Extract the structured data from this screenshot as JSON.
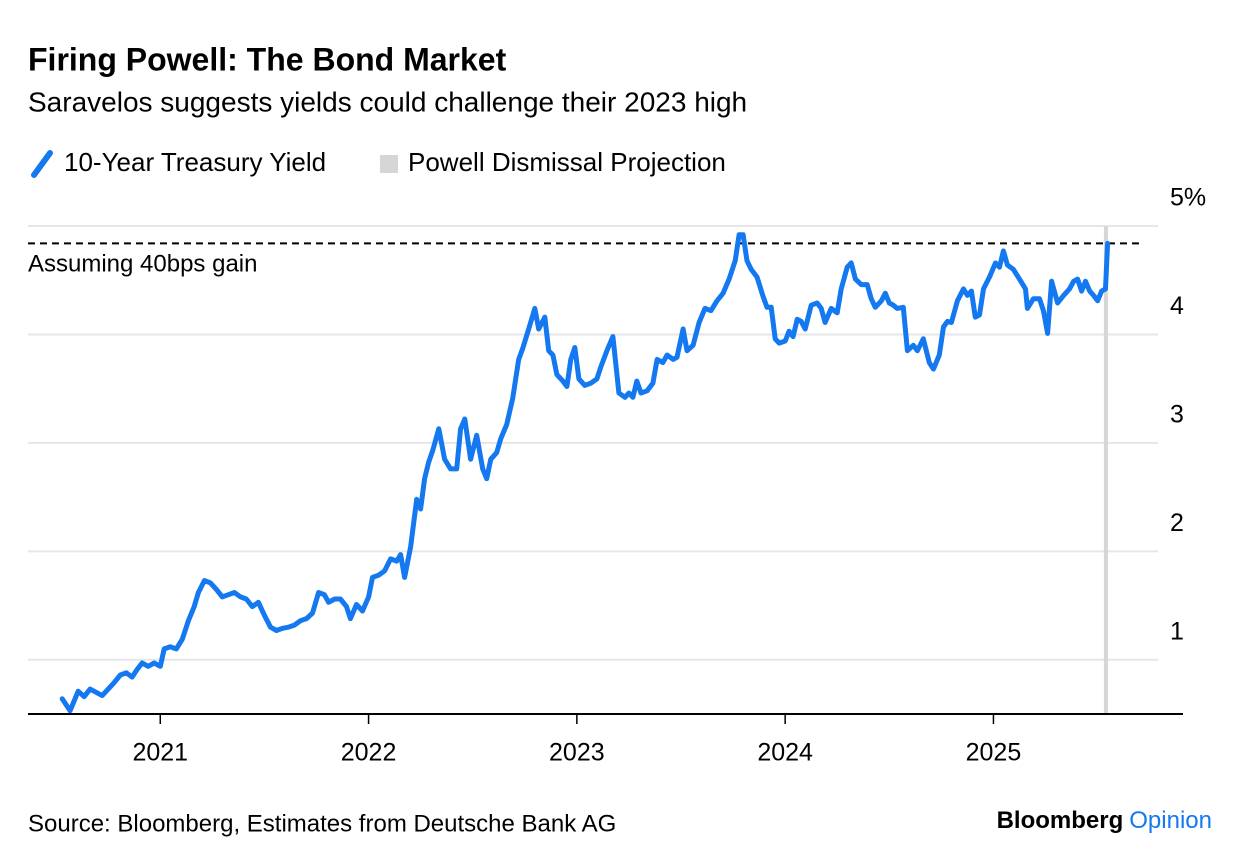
{
  "chart_data": {
    "type": "line",
    "title": "Firing Powell: The Bond Market",
    "subtitle": "Saravelos suggests yields could challenge their 2023 high",
    "source": "Source: Bloomberg, Estimates from Deutsche Bank AG",
    "brand": [
      "Bloomberg",
      "Opinion"
    ],
    "xlim": [
      2020.365,
      2025.91
    ],
    "xticks": [
      2021,
      2022,
      2023,
      2024,
      2025
    ],
    "ylim": [
      0.5,
      5
    ],
    "yticks": [
      1,
      2,
      3,
      4,
      {
        "value": 5,
        "label": "5%"
      }
    ],
    "grid": true,
    "reference_line": {
      "value": 4.84,
      "label": "Assuming 40bps gain"
    },
    "projection": {
      "name": "Powell Dismissal Projection",
      "x": 2025.54,
      "color": "#d6d6d6"
    },
    "x": [
      2020.529,
      2020.567,
      2020.606,
      2020.635,
      2020.663,
      2020.692,
      2020.721,
      2020.75,
      2020.779,
      2020.808,
      2020.837,
      2020.865,
      2020.885,
      2020.913,
      2020.942,
      2020.971,
      2021.0,
      2021.019,
      2021.048,
      2021.077,
      2021.106,
      2021.135,
      2021.163,
      2021.183,
      2021.212,
      2021.24,
      2021.269,
      2021.298,
      2021.327,
      2021.356,
      2021.385,
      2021.413,
      2021.442,
      2021.471,
      2021.5,
      2021.529,
      2021.558,
      2021.587,
      2021.615,
      2021.644,
      2021.673,
      2021.702,
      2021.731,
      2021.76,
      2021.788,
      2021.808,
      2021.837,
      2021.865,
      2021.894,
      2021.913,
      2021.942,
      2021.971,
      2022.0,
      2022.019,
      2022.048,
      2022.077,
      2022.106,
      2022.135,
      2022.154,
      2022.173,
      2022.202,
      2022.231,
      2022.25,
      2022.269,
      2022.288,
      2022.308,
      2022.337,
      2022.365,
      2022.394,
      2022.423,
      2022.442,
      2022.462,
      2022.49,
      2022.519,
      2022.548,
      2022.567,
      2022.587,
      2022.615,
      2022.635,
      2022.663,
      2022.692,
      2022.721,
      2022.74,
      2022.769,
      2022.798,
      2022.817,
      2022.846,
      2022.865,
      2022.885,
      2022.904,
      2022.933,
      2022.952,
      2022.971,
      2022.99,
      2023.01,
      2023.038,
      2023.067,
      2023.096,
      2023.115,
      2023.144,
      2023.173,
      2023.202,
      2023.231,
      2023.25,
      2023.269,
      2023.288,
      2023.308,
      2023.337,
      2023.365,
      2023.385,
      2023.413,
      2023.433,
      2023.462,
      2023.481,
      2023.51,
      2023.529,
      2023.558,
      2023.587,
      2023.615,
      2023.644,
      2023.673,
      2023.702,
      2023.731,
      2023.76,
      2023.779,
      2023.798,
      2023.817,
      2023.837,
      2023.865,
      2023.894,
      2023.913,
      2023.933,
      2023.952,
      2023.971,
      2024.0,
      2024.019,
      2024.038,
      2024.058,
      2024.077,
      2024.096,
      2024.125,
      2024.154,
      2024.173,
      2024.192,
      2024.221,
      2024.25,
      2024.269,
      2024.298,
      2024.317,
      2024.337,
      2024.365,
      2024.394,
      2024.413,
      2024.433,
      2024.462,
      2024.481,
      2024.5,
      2024.519,
      2024.538,
      2024.567,
      2024.587,
      2024.615,
      2024.635,
      2024.663,
      2024.692,
      2024.712,
      2024.74,
      2024.76,
      2024.779,
      2024.798,
      2024.827,
      2024.856,
      2024.875,
      2024.894,
      2024.913,
      2024.933,
      2024.952,
      2024.981,
      2025.01,
      2025.029,
      2025.048,
      2025.067,
      2025.096,
      2025.125,
      2025.154,
      2025.163,
      2025.192,
      2025.221,
      2025.24,
      2025.26,
      2025.279,
      2025.308,
      2025.337,
      2025.365,
      2025.385,
      2025.404,
      2025.423,
      2025.442,
      2025.462,
      2025.481,
      2025.5,
      2025.519,
      2025.538,
      2025.548
    ],
    "series": [
      {
        "name": "10-Year Treasury Yield",
        "color": "#1478f0",
        "values": [
          0.64,
          0.53,
          0.71,
          0.66,
          0.73,
          0.7,
          0.67,
          0.73,
          0.79,
          0.86,
          0.88,
          0.84,
          0.9,
          0.97,
          0.94,
          0.97,
          0.94,
          1.1,
          1.12,
          1.1,
          1.19,
          1.36,
          1.49,
          1.62,
          1.73,
          1.71,
          1.65,
          1.58,
          1.6,
          1.62,
          1.58,
          1.56,
          1.49,
          1.53,
          1.41,
          1.3,
          1.27,
          1.29,
          1.3,
          1.32,
          1.36,
          1.38,
          1.43,
          1.62,
          1.6,
          1.53,
          1.56,
          1.56,
          1.49,
          1.38,
          1.51,
          1.45,
          1.58,
          1.76,
          1.78,
          1.82,
          1.93,
          1.91,
          1.97,
          1.76,
          2.04,
          2.48,
          2.39,
          2.67,
          2.82,
          2.93,
          3.13,
          2.85,
          2.76,
          2.76,
          3.13,
          3.22,
          2.85,
          3.07,
          2.76,
          2.67,
          2.85,
          2.91,
          3.04,
          3.17,
          3.41,
          3.77,
          3.87,
          4.05,
          4.24,
          4.05,
          4.16,
          3.85,
          3.81,
          3.63,
          3.57,
          3.52,
          3.77,
          3.88,
          3.59,
          3.53,
          3.55,
          3.59,
          3.7,
          3.85,
          3.98,
          3.46,
          3.42,
          3.46,
          3.42,
          3.57,
          3.46,
          3.48,
          3.55,
          3.77,
          3.74,
          3.81,
          3.77,
          3.79,
          4.05,
          3.85,
          3.9,
          4.11,
          4.24,
          4.22,
          4.31,
          4.38,
          4.51,
          4.68,
          4.92,
          4.92,
          4.68,
          4.6,
          4.53,
          4.35,
          4.25,
          4.25,
          3.96,
          3.92,
          3.94,
          4.03,
          3.98,
          4.14,
          4.12,
          4.05,
          4.27,
          4.29,
          4.24,
          4.11,
          4.24,
          4.2,
          4.42,
          4.62,
          4.66,
          4.51,
          4.46,
          4.46,
          4.33,
          4.25,
          4.31,
          4.38,
          4.29,
          4.27,
          4.24,
          4.25,
          3.85,
          3.9,
          3.85,
          3.96,
          3.74,
          3.68,
          3.81,
          4.07,
          4.12,
          4.11,
          4.31,
          4.42,
          4.36,
          4.4,
          4.16,
          4.18,
          4.42,
          4.53,
          4.66,
          4.62,
          4.77,
          4.64,
          4.6,
          4.51,
          4.42,
          4.24,
          4.33,
          4.33,
          4.22,
          4.01,
          4.49,
          4.29,
          4.36,
          4.42,
          4.49,
          4.51,
          4.4,
          4.49,
          4.4,
          4.36,
          4.31,
          4.4,
          4.42,
          4.84
        ]
      }
    ]
  }
}
